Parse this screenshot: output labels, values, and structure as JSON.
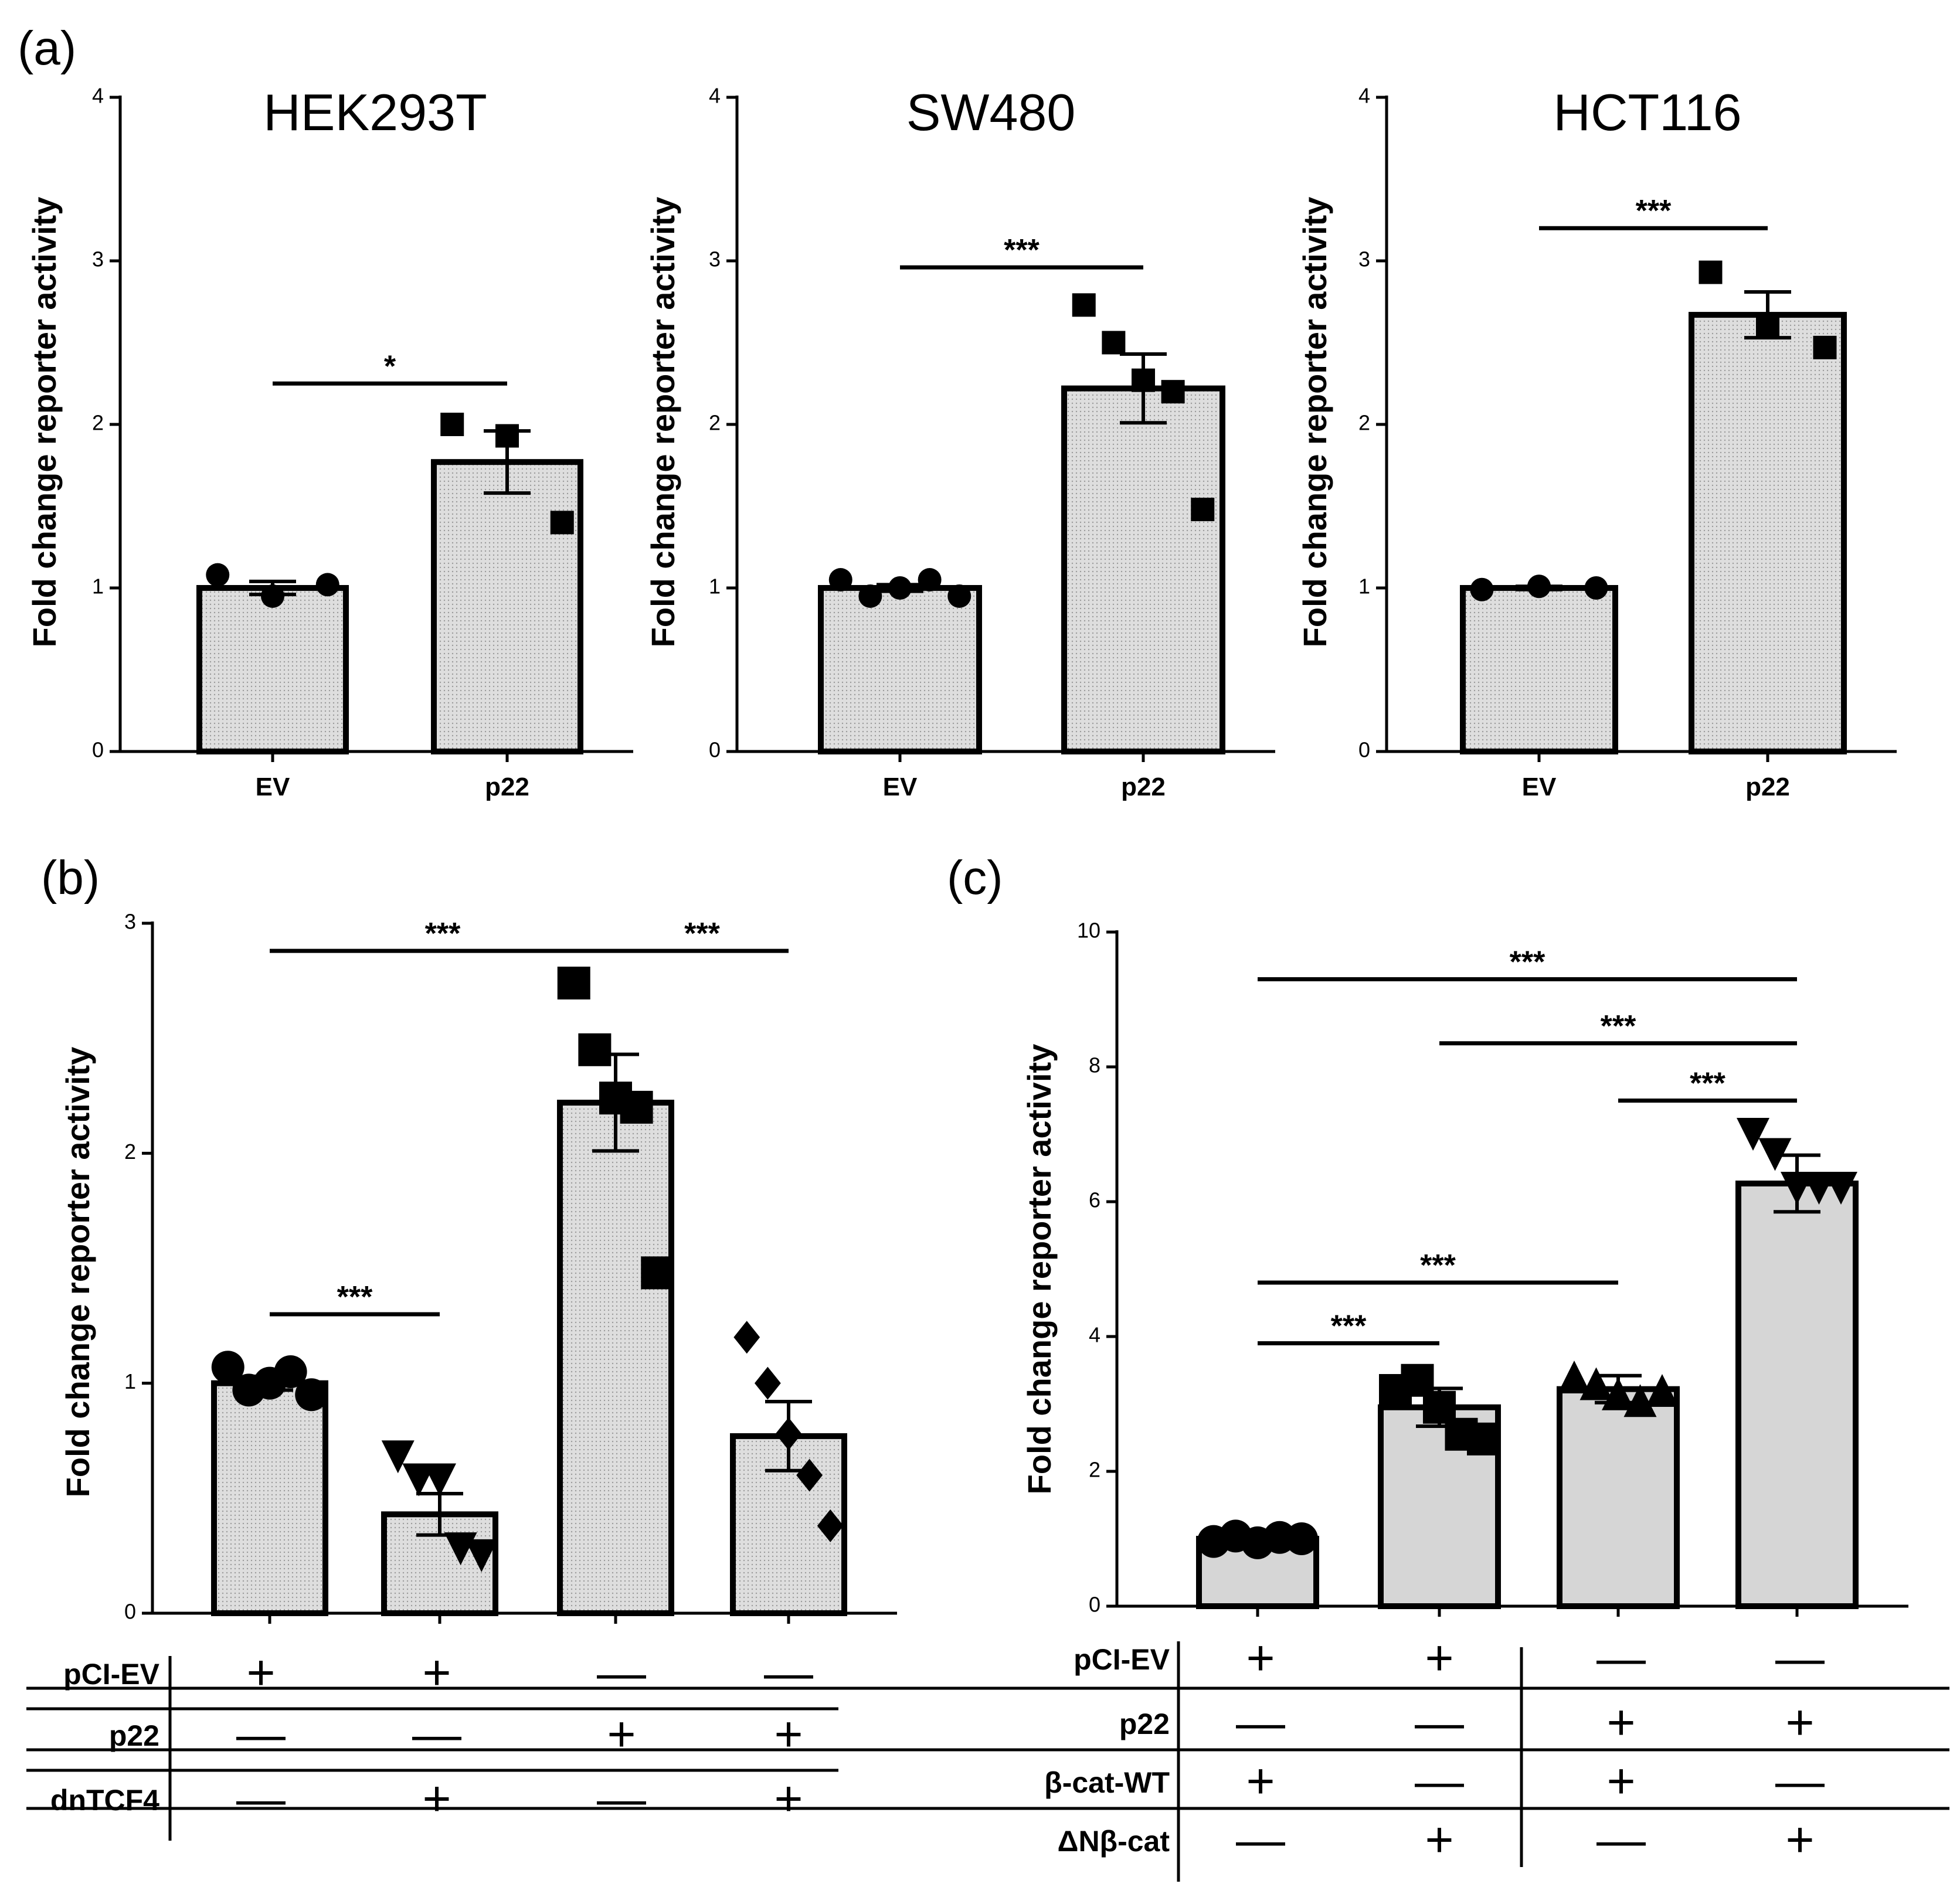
{
  "panel_labels": {
    "a": "(a)",
    "b": "(b)",
    "c": "(c)"
  },
  "chart_data": [
    {
      "id": "a1",
      "type": "bar",
      "title": "HEK293T",
      "ylabel": "Fold change reporter activity",
      "categories": [
        "EV",
        "p22"
      ],
      "values": [
        1.0,
        1.77
      ],
      "errors": [
        0.04,
        0.19
      ],
      "ylim": [
        0,
        4
      ],
      "yticks": [
        "0",
        "1",
        "2",
        "3",
        "4"
      ],
      "points": [
        [
          1.08,
          0.95,
          1.02
        ],
        [
          2.0,
          1.93,
          1.4
        ]
      ],
      "marker": [
        "circle",
        "square"
      ],
      "significance": [
        {
          "from": 0,
          "to": 1,
          "y": 2.25,
          "label": "*"
        }
      ]
    },
    {
      "id": "a2",
      "type": "bar",
      "title": "SW480",
      "ylabel": "Fold change reporter activity",
      "categories": [
        "EV",
        "p22"
      ],
      "values": [
        1.0,
        2.22
      ],
      "errors": [
        0.02,
        0.21
      ],
      "ylim": [
        0,
        4
      ],
      "yticks": [
        "0",
        "1",
        "2",
        "3",
        "4"
      ],
      "points": [
        [
          1.05,
          0.95,
          1.0,
          1.05,
          0.95
        ],
        [
          2.73,
          2.5,
          2.27,
          2.2,
          1.48
        ]
      ],
      "marker": [
        "circle",
        "square"
      ],
      "significance": [
        {
          "from": 0,
          "to": 1,
          "y": 2.96,
          "label": "***"
        }
      ]
    },
    {
      "id": "a3",
      "type": "bar",
      "title": "HCT116",
      "ylabel": "Fold change reporter activity",
      "categories": [
        "EV",
        "p22"
      ],
      "values": [
        1.0,
        2.67
      ],
      "errors": [
        0.01,
        0.14
      ],
      "ylim": [
        0,
        4
      ],
      "yticks": [
        "0",
        "1",
        "2",
        "3",
        "4"
      ],
      "points": [
        [
          0.99,
          1.01,
          1.0
        ],
        [
          2.93,
          2.6,
          2.47
        ]
      ],
      "marker": [
        "circle",
        "square"
      ],
      "significance": [
        {
          "from": 0,
          "to": 1,
          "y": 3.2,
          "label": "***"
        }
      ]
    },
    {
      "id": "b",
      "type": "bar",
      "ylabel": "Fold change reporter activity",
      "categories": [
        "",
        "",
        "",
        ""
      ],
      "values": [
        1.0,
        0.43,
        2.22,
        0.77
      ],
      "errors": [
        0.03,
        0.09,
        0.21,
        0.15
      ],
      "ylim": [
        0,
        3
      ],
      "yticks": [
        "0",
        "1",
        "2",
        "3"
      ],
      "points": [
        [
          1.07,
          0.97,
          1.0,
          1.05,
          0.95
        ],
        [
          0.68,
          0.58,
          0.58,
          0.28,
          0.25
        ],
        [
          2.74,
          2.45,
          2.24,
          2.2,
          1.48
        ],
        [
          1.2,
          1.0,
          0.78,
          0.6,
          0.38
        ]
      ],
      "marker": [
        "circle",
        "triangle-down",
        "square",
        "diamond"
      ],
      "significance": [
        {
          "from": 0,
          "to": 2,
          "y": 2.88,
          "label": "***"
        },
        {
          "from": 2,
          "to": 3,
          "y": 2.88,
          "label": "***"
        },
        {
          "from": 0,
          "to": 1,
          "y": 1.3,
          "label": "***"
        }
      ]
    },
    {
      "id": "c",
      "type": "bar",
      "ylabel": "Fold change reporter activity",
      "categories": [
        "",
        "",
        "",
        ""
      ],
      "values": [
        1.0,
        2.95,
        3.22,
        6.27
      ],
      "errors": [
        0.05,
        0.28,
        0.2,
        0.42
      ],
      "ylim": [
        0,
        10
      ],
      "yticks": [
        "0",
        "2",
        "4",
        "6",
        "8",
        "10"
      ],
      "points": [
        [
          0.96,
          1.04,
          0.94,
          1.02,
          1.0
        ],
        [
          3.2,
          3.35,
          2.95,
          2.55,
          2.48
        ],
        [
          3.4,
          3.3,
          3.15,
          3.05,
          3.2
        ],
        [
          7.0,
          6.7,
          6.2,
          6.2,
          6.2
        ]
      ],
      "marker": [
        "circle",
        "square",
        "triangle-up",
        "triangle-down"
      ],
      "significance": [
        {
          "from": 0,
          "to": 3,
          "y": 9.3,
          "label": "***"
        },
        {
          "from": 1,
          "to": 3,
          "y": 8.35,
          "label": "***"
        },
        {
          "from": 2,
          "to": 3,
          "y": 7.5,
          "label": "***"
        },
        {
          "from": 0,
          "to": 2,
          "y": 4.8,
          "label": "***"
        },
        {
          "from": 0,
          "to": 1,
          "y": 3.9,
          "label": "***"
        }
      ]
    }
  ],
  "tables": {
    "b": {
      "rows": [
        {
          "label": "pCI-EV",
          "cells": [
            "+",
            "+",
            "—",
            "—"
          ]
        },
        {
          "label": "p22",
          "cells": [
            "—",
            "—",
            "+",
            "+"
          ]
        },
        {
          "label": "dnTCF4",
          "cells": [
            "—",
            "+",
            "—",
            "+"
          ]
        }
      ]
    },
    "c": {
      "rows": [
        {
          "label": "pCI-EV",
          "cells": [
            "+",
            "+",
            "—",
            "—"
          ]
        },
        {
          "label": "p22",
          "cells": [
            "—",
            "—",
            "+",
            "+"
          ]
        },
        {
          "label": "β-cat-WT",
          "cells": [
            "+",
            "—",
            "+",
            "—"
          ]
        },
        {
          "label": "ΔNβ-cat",
          "cells": [
            "—",
            "+",
            "—",
            "+"
          ]
        }
      ]
    }
  }
}
